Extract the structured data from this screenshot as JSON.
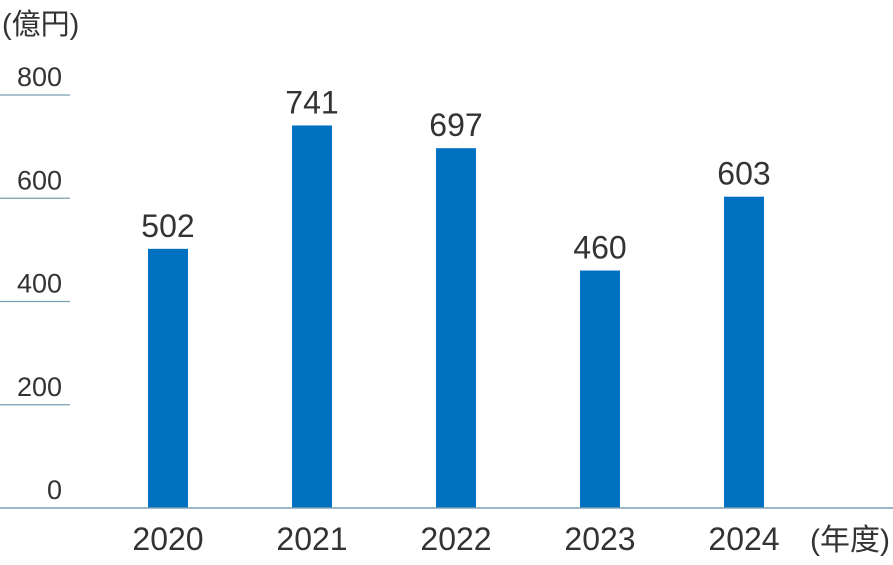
{
  "chart_data": {
    "type": "bar",
    "y_unit_label": "(億円)",
    "x_unit_label": "(年度)",
    "categories": [
      "2020",
      "2021",
      "2022",
      "2023",
      "2024"
    ],
    "values": [
      502,
      741,
      697,
      460,
      603
    ],
    "data_labels": [
      "502",
      "741",
      "697",
      "460",
      "603"
    ],
    "y_ticks": [
      0,
      200,
      400,
      600,
      800
    ],
    "y_tick_labels": [
      "0",
      "200",
      "400",
      "600",
      "800"
    ],
    "ylim": [
      0,
      800
    ],
    "grid": false,
    "legend": "none",
    "colors": {
      "bar": "#0070C0",
      "text": "#333333",
      "axis": "#7a9fb5",
      "tick": "#7a9fb5"
    }
  }
}
